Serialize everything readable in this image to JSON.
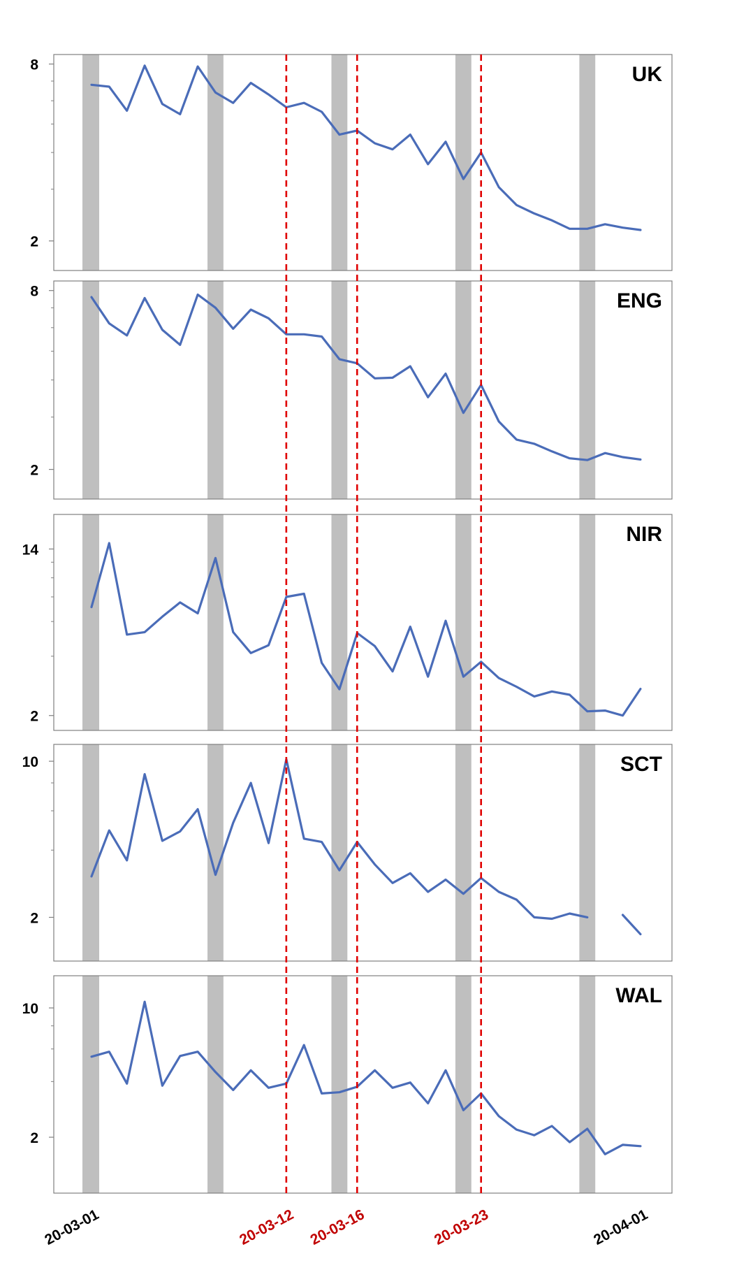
{
  "chart_data": {
    "type": "line",
    "dates": [
      "2020-03-01",
      "2020-03-02",
      "2020-03-03",
      "2020-03-04",
      "2020-03-05",
      "2020-03-06",
      "2020-03-07",
      "2020-03-08",
      "2020-03-09",
      "2020-03-10",
      "2020-03-11",
      "2020-03-12",
      "2020-03-13",
      "2020-03-14",
      "2020-03-15",
      "2020-03-16",
      "2020-03-17",
      "2020-03-18",
      "2020-03-19",
      "2020-03-20",
      "2020-03-21",
      "2020-03-22",
      "2020-03-23",
      "2020-03-24",
      "2020-03-25",
      "2020-03-26",
      "2020-03-27",
      "2020-03-28",
      "2020-03-29",
      "2020-03-30",
      "2020-03-31",
      "2020-04-01"
    ],
    "x_tick_labels": [
      {
        "date": "2020-03-01",
        "label": "20-03-01",
        "color": "#000000"
      },
      {
        "date": "2020-03-12",
        "label": "20-03-12",
        "color": "#c00000"
      },
      {
        "date": "2020-03-16",
        "label": "20-03-16",
        "color": "#c00000"
      },
      {
        "date": "2020-03-23",
        "label": "20-03-23",
        "color": "#c00000"
      },
      {
        "date": "2020-04-01",
        "label": "20-04-01",
        "color": "#000000"
      }
    ],
    "event_lines": [
      "2020-03-12",
      "2020-03-16",
      "2020-03-23"
    ],
    "weekend_bands": [
      [
        "2020-02-29",
        "2020-03-01"
      ],
      [
        "2020-03-07",
        "2020-03-08"
      ],
      [
        "2020-03-14",
        "2020-03-15"
      ],
      [
        "2020-03-21",
        "2020-03-22"
      ],
      [
        "2020-03-28",
        "2020-03-29"
      ]
    ],
    "line_color": "#4a6cb8",
    "event_line_color": "#e00000",
    "band_color": "#bfbfbf",
    "scale": "log",
    "panels": [
      {
        "label": "UK",
        "ylim": [
          1.88,
          8.25
        ],
        "ticks": [
          8,
          2
        ],
        "minor_ticks": [
          7,
          6,
          5,
          4,
          3
        ],
        "values": [
          6.8,
          6.7,
          5.55,
          7.9,
          5.85,
          5.4,
          7.85,
          6.4,
          5.9,
          6.9,
          6.3,
          5.7,
          5.9,
          5.5,
          4.6,
          4.75,
          4.3,
          4.1,
          4.6,
          3.65,
          4.35,
          3.25,
          4.0,
          3.05,
          2.65,
          2.48,
          2.35,
          2.2,
          2.2,
          2.28,
          2.22,
          2.18
        ]
      },
      {
        "label": "ENG",
        "ylim": [
          1.88,
          8.25
        ],
        "ticks": [
          8,
          2
        ],
        "minor_ticks": [
          7,
          6,
          5,
          4,
          3
        ],
        "values": [
          7.6,
          6.2,
          5.65,
          7.55,
          5.9,
          5.25,
          7.75,
          7.0,
          5.95,
          6.9,
          6.45,
          5.7,
          5.7,
          5.6,
          4.7,
          4.55,
          4.05,
          4.07,
          4.45,
          3.5,
          4.2,
          3.1,
          3.85,
          2.9,
          2.52,
          2.44,
          2.3,
          2.18,
          2.15,
          2.27,
          2.2,
          2.16
        ]
      },
      {
        "label": "NIR",
        "ylim": [
          1.9,
          15.5
        ],
        "ticks": [
          14,
          2
        ],
        "minor_ticks": [
          12,
          10,
          8,
          6,
          4
        ],
        "values": [
          7.1,
          15.0,
          5.15,
          5.3,
          6.35,
          7.5,
          6.6,
          12.6,
          5.3,
          4.15,
          4.55,
          8.0,
          8.3,
          3.7,
          2.72,
          5.25,
          4.5,
          3.35,
          5.65,
          3.15,
          6.05,
          3.15,
          3.75,
          3.1,
          2.8,
          2.5,
          2.65,
          2.55,
          2.1,
          2.12,
          2.0,
          2.73
        ]
      },
      {
        "label": "SCT",
        "ylim": [
          1.7,
          10.3
        ],
        "ticks": [
          10,
          2
        ],
        "minor_ticks": [
          8,
          6,
          4
        ],
        "values": [
          3.05,
          4.9,
          3.6,
          8.75,
          4.4,
          4.85,
          6.1,
          3.1,
          5.3,
          8.0,
          4.3,
          10.2,
          4.5,
          4.35,
          3.25,
          4.35,
          3.45,
          2.85,
          3.15,
          2.6,
          2.95,
          2.55,
          3.0,
          2.6,
          2.4,
          2.0,
          1.97,
          2.08,
          2.0,
          null,
          2.05,
          1.68
        ]
      },
      {
        "label": "WAL",
        "ylim": [
          1.45,
          11.3
        ],
        "ticks": [
          10,
          2
        ],
        "minor_ticks": [
          8,
          6,
          4
        ],
        "values": [
          5.45,
          5.8,
          3.9,
          10.8,
          3.8,
          5.5,
          5.8,
          4.5,
          3.6,
          4.6,
          3.7,
          3.9,
          6.3,
          3.45,
          3.5,
          3.75,
          4.6,
          3.7,
          3.95,
          3.05,
          4.6,
          2.8,
          3.45,
          2.6,
          2.2,
          2.05,
          2.3,
          1.88,
          2.22,
          1.62,
          1.82,
          1.79
        ]
      }
    ]
  }
}
